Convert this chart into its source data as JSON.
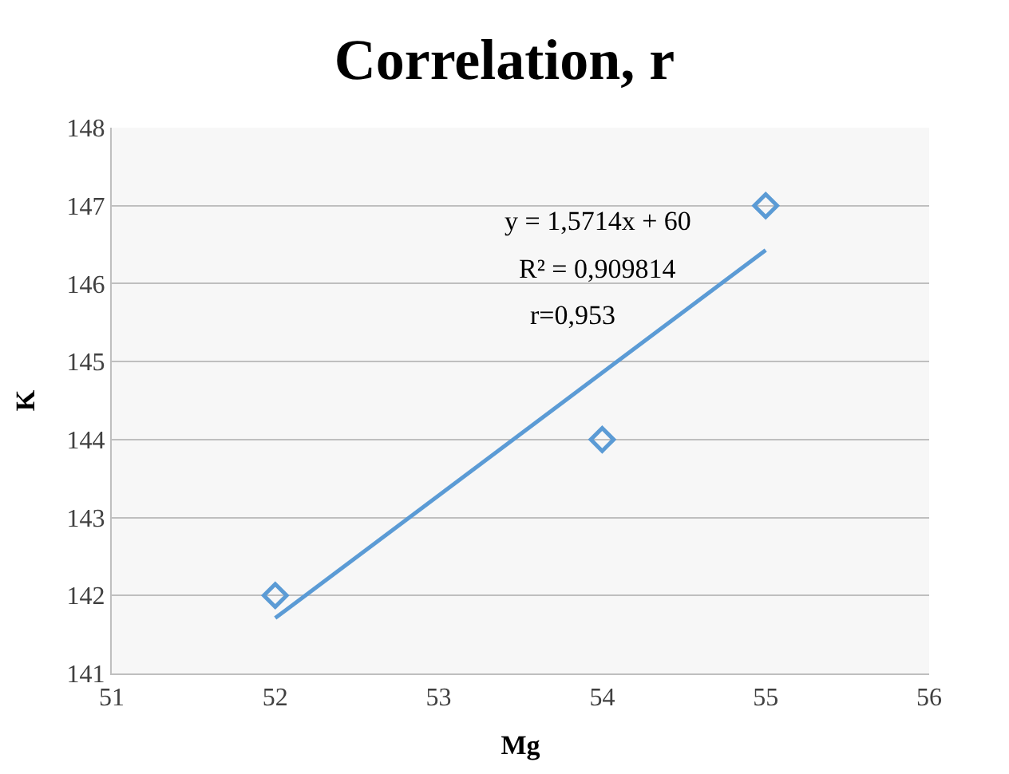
{
  "chart_data": {
    "type": "scatter",
    "title": "Correlation, r",
    "xlabel": "Mg",
    "ylabel": "K",
    "xlim": [
      51,
      56
    ],
    "xticks": [
      51,
      52,
      53,
      54,
      55,
      56
    ],
    "ylim": [
      141,
      148
    ],
    "yticks": [
      141,
      142,
      143,
      144,
      145,
      146,
      147,
      148
    ],
    "grid": "y",
    "series": [
      {
        "color": "#5b9bd5",
        "marker": "diamond",
        "x": [
          52,
          54,
          55
        ],
        "values": [
          142,
          144,
          147
        ]
      },
      {
        "type": "line",
        "color": "#5b9bd5",
        "marker": "none",
        "line_style": "solid",
        "x": [
          52,
          55
        ],
        "values": [
          141.71,
          146.43
        ]
      }
    ],
    "annotations": [
      "y = 1,5714x + 60",
      "R² = 0,909814",
      "r=0,953"
    ]
  }
}
